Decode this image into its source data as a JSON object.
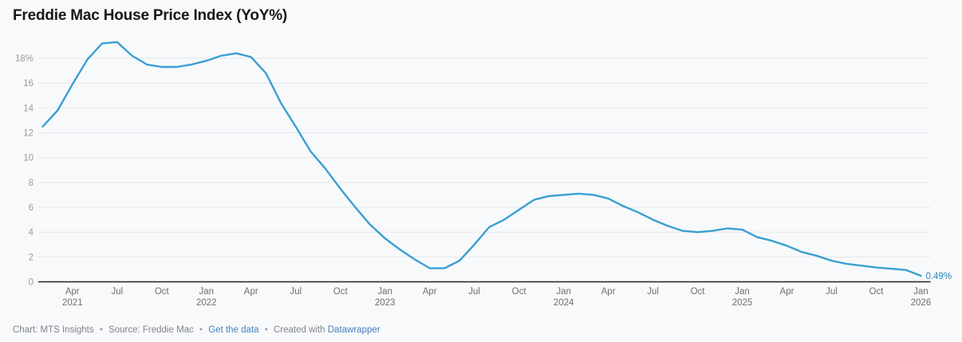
{
  "header": {
    "title": "Freddie Mac House Price Index (YoY%)"
  },
  "chart_data": {
    "type": "line",
    "title": "Freddie Mac House Price Index (YoY%)",
    "series_name": "House Price Index YoY %",
    "x_labels": [
      "Feb 2021",
      "Mar 2021",
      "Apr 2021",
      "May 2021",
      "Jun 2021",
      "Jul 2021",
      "Aug 2021",
      "Sep 2021",
      "Oct 2021",
      "Nov 2021",
      "Dec 2021",
      "Jan 2022",
      "Feb 2022",
      "Mar 2022",
      "Apr 2022",
      "May 2022",
      "Jun 2022",
      "Jul 2022",
      "Aug 2022",
      "Sep 2022",
      "Oct 2022",
      "Nov 2022",
      "Dec 2022",
      "Jan 2023",
      "Feb 2023",
      "Mar 2023",
      "Apr 2023",
      "May 2023",
      "Jun 2023",
      "Jul 2023",
      "Aug 2023",
      "Sep 2023",
      "Oct 2023",
      "Nov 2023",
      "Dec 2023",
      "Jan 2024",
      "Feb 2024",
      "Mar 2024",
      "Apr 2024",
      "May 2024",
      "Jun 2024",
      "Jul 2024",
      "Aug 2024",
      "Sep 2024",
      "Oct 2024",
      "Nov 2024",
      "Dec 2024",
      "Jan 2025",
      "Feb 2025",
      "Mar 2025",
      "Apr 2025",
      "May 2025",
      "Jun 2025",
      "Jul 2025",
      "Aug 2025",
      "Sep 2025",
      "Oct 2025",
      "Nov 2025",
      "Dec 2025",
      "Jan 2026"
    ],
    "values": [
      12.5,
      13.8,
      15.9,
      17.9,
      19.2,
      19.3,
      18.2,
      17.5,
      17.3,
      17.3,
      17.5,
      17.8,
      18.2,
      18.4,
      18.1,
      16.8,
      14.4,
      12.5,
      10.5,
      9.1,
      7.5,
      6.0,
      4.6,
      3.5,
      2.6,
      1.8,
      1.1,
      1.1,
      1.7,
      3.0,
      4.4,
      5.0,
      5.8,
      6.6,
      6.9,
      7.0,
      7.1,
      7.0,
      6.7,
      6.1,
      5.6,
      5.0,
      4.5,
      4.1,
      4.0,
      4.1,
      4.3,
      4.2,
      3.6,
      3.3,
      2.9,
      2.4,
      2.1,
      1.7,
      1.45,
      1.3,
      1.15,
      1.05,
      0.95,
      0.49
    ],
    "y_ticks": [
      0,
      2,
      4,
      6,
      8,
      10,
      12,
      14,
      16,
      18
    ],
    "y_tick_labels": [
      "0",
      "2",
      "4",
      "6",
      "8",
      "10",
      "12",
      "14",
      "16",
      "18%"
    ],
    "x_ticks": [
      {
        "index": 2,
        "label": "Apr",
        "year": "2021"
      },
      {
        "index": 5,
        "label": "Jul"
      },
      {
        "index": 8,
        "label": "Oct"
      },
      {
        "index": 11,
        "label": "Jan",
        "year": "2022"
      },
      {
        "index": 14,
        "label": "Apr"
      },
      {
        "index": 17,
        "label": "Jul"
      },
      {
        "index": 20,
        "label": "Oct"
      },
      {
        "index": 23,
        "label": "Jan",
        "year": "2023"
      },
      {
        "index": 26,
        "label": "Apr"
      },
      {
        "index": 29,
        "label": "Jul"
      },
      {
        "index": 32,
        "label": "Oct"
      },
      {
        "index": 35,
        "label": "Jan",
        "year": "2024"
      },
      {
        "index": 38,
        "label": "Apr"
      },
      {
        "index": 41,
        "label": "Jul"
      },
      {
        "index": 44,
        "label": "Oct"
      },
      {
        "index": 47,
        "label": "Jan",
        "year": "2025"
      },
      {
        "index": 50,
        "label": "Apr"
      },
      {
        "index": 53,
        "label": "Jul"
      },
      {
        "index": 56,
        "label": "Oct"
      },
      {
        "index": 59,
        "label": "Jan",
        "year": "2026"
      }
    ],
    "end_label": "0.49%",
    "ylim": [
      0,
      19.5
    ],
    "grid": true,
    "legend": "none",
    "xlabel": "",
    "ylabel": ""
  },
  "colors": {
    "line": "#3a9fd1",
    "end_label": "#2e86b5",
    "grid": "#e5e7ea",
    "axis_baseline": "#222222",
    "y_tick_text": "#9b9b9b",
    "x_tick_text": "#6f6f6f",
    "background": "#f8f9fb",
    "link": "#4781bd"
  },
  "footer": {
    "chart_credit": "Chart: MTS Insights",
    "separator": "•",
    "source": "Source: Freddie Mac",
    "get_data_link": "Get the data",
    "created_with": "Created with",
    "datawrapper_link": "Datawrapper"
  }
}
